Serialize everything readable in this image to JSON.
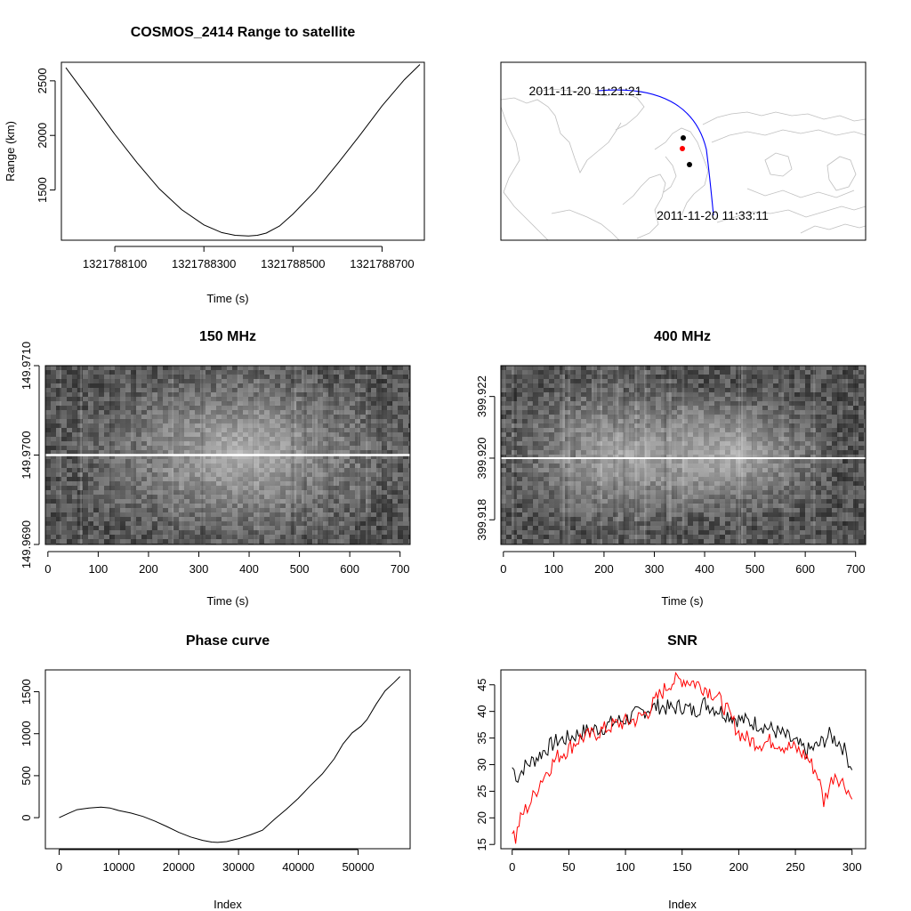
{
  "chart_data": [
    {
      "id": "range",
      "type": "line",
      "title": "COSMOS_2414 Range to satellite",
      "xlabel": "Time (s)",
      "ylabel": "Range (km)",
      "xlim": [
        1321787980,
        1321788795
      ],
      "ylim": [
        1040,
        2670
      ],
      "xticks": [
        1321788100,
        1321788300,
        1321788500,
        1321788700
      ],
      "yticks": [
        1500,
        2000,
        2500
      ],
      "series": [
        {
          "color": "#000000",
          "x": [
            1321787990,
            1321788050,
            1321788100,
            1321788150,
            1321788200,
            1321788250,
            1321788300,
            1321788340,
            1321788370,
            1321788400,
            1321788420,
            1321788440,
            1321788470,
            1321788500,
            1321788550,
            1321788600,
            1321788650,
            1321788700,
            1321788750,
            1321788785
          ],
          "y": [
            2620,
            2290,
            2010,
            1750,
            1510,
            1320,
            1180,
            1110,
            1085,
            1078,
            1085,
            1105,
            1170,
            1280,
            1490,
            1740,
            2000,
            2270,
            2510,
            2650
          ]
        }
      ]
    },
    {
      "id": "map",
      "type": "other",
      "annotations": [
        "2011-11-20 11:21:21",
        "2011-11-20 11:33:11"
      ],
      "track_color": "#0000ff",
      "station_colors": [
        "#000000",
        "#ff0000",
        "#000000"
      ]
    },
    {
      "id": "spec150",
      "type": "heatmap",
      "title": "150 MHz",
      "xlabel": "Time (s)",
      "xlim": [
        -5,
        720
      ],
      "ylim": [
        149.969,
        149.971
      ],
      "xticks": [
        0,
        100,
        200,
        300,
        400,
        500,
        600,
        700
      ],
      "yticks": [
        "149.9690",
        "149.9700",
        "149.9710"
      ],
      "ytick_values": [
        149.969,
        149.97,
        149.971
      ],
      "signal_freq": 149.97
    },
    {
      "id": "spec400",
      "type": "heatmap",
      "title": "400 MHz",
      "xlabel": "Time (s)",
      "xlim": [
        -5,
        720
      ],
      "ylim": [
        399.9172,
        399.923
      ],
      "xticks": [
        0,
        100,
        200,
        300,
        400,
        500,
        600,
        700
      ],
      "yticks": [
        "399.918",
        "399.920",
        "399.922"
      ],
      "ytick_values": [
        399.918,
        399.92,
        399.922
      ],
      "signal_freq": 399.92
    },
    {
      "id": "phase",
      "type": "line",
      "title": "Phase curve",
      "xlabel": "Index",
      "xlim": [
        -2300,
        58700
      ],
      "ylim": [
        -370,
        1760
      ],
      "xticks": [
        0,
        10000,
        20000,
        30000,
        40000,
        50000
      ],
      "yticks": [
        0,
        500,
        1000,
        1500
      ],
      "series": [
        {
          "color": "#000000",
          "x": [
            0,
            1500,
            3000,
            5000,
            7000,
            8500,
            10000,
            12000,
            14000,
            16000,
            18000,
            20000,
            22000,
            24000,
            25500,
            26500,
            28000,
            30000,
            32000,
            34000,
            36000,
            38000,
            40000,
            42000,
            44000,
            46000,
            47500,
            49000,
            50500,
            51500,
            53000,
            54500,
            56000,
            57000
          ],
          "y": [
            0,
            50,
            95,
            115,
            125,
            115,
            85,
            55,
            15,
            -40,
            -105,
            -175,
            -230,
            -270,
            -290,
            -295,
            -285,
            -250,
            -205,
            -150,
            -20,
            100,
            230,
            380,
            520,
            700,
            880,
            1010,
            1090,
            1170,
            1350,
            1510,
            1610,
            1680
          ]
        }
      ]
    },
    {
      "id": "snr",
      "type": "line",
      "title": "SNR",
      "xlabel": "Index",
      "xlim": [
        -10,
        312
      ],
      "ylim": [
        14.2,
        47.8
      ],
      "xticks": [
        0,
        50,
        100,
        150,
        200,
        250,
        300
      ],
      "yticks": [
        15,
        20,
        25,
        30,
        35,
        40,
        45
      ],
      "series": [
        {
          "color": "#000000",
          "x": [
            0,
            5,
            10,
            20,
            30,
            40,
            50,
            60,
            70,
            80,
            90,
            100,
            110,
            120,
            130,
            140,
            150,
            160,
            170,
            180,
            190,
            200,
            210,
            220,
            230,
            240,
            250,
            260,
            270,
            280,
            290,
            295,
            300
          ],
          "y": [
            29.5,
            27.5,
            29.5,
            31.0,
            33.0,
            34.5,
            35.0,
            36.0,
            36.5,
            37.0,
            38.0,
            38.5,
            39.5,
            40.5,
            41.0,
            40.5,
            41.0,
            40.0,
            41.5,
            40.5,
            39.5,
            38.5,
            38.0,
            37.5,
            36.5,
            35.5,
            34.0,
            32.5,
            33.5,
            35.5,
            34.0,
            32.0,
            29.0
          ]
        },
        {
          "color": "#ff0000",
          "x": [
            0,
            3,
            6,
            10,
            15,
            20,
            25,
            30,
            40,
            50,
            60,
            70,
            80,
            90,
            100,
            110,
            120,
            130,
            140,
            150,
            160,
            170,
            180,
            190,
            200,
            210,
            220,
            230,
            240,
            250,
            260,
            270,
            275,
            280,
            285,
            290,
            295,
            300
          ],
          "y": [
            18.0,
            16.0,
            19.0,
            21.0,
            22.5,
            24.5,
            27.0,
            28.5,
            31.5,
            33.0,
            35.0,
            35.5,
            36.5,
            37.5,
            38.0,
            38.5,
            40.0,
            43.0,
            45.5,
            46.0,
            45.5,
            44.5,
            43.0,
            40.0,
            36.0,
            34.5,
            34.0,
            34.5,
            33.5,
            33.0,
            31.5,
            28.0,
            23.0,
            26.0,
            28.5,
            27.0,
            26.0,
            23.5
          ]
        }
      ]
    }
  ]
}
